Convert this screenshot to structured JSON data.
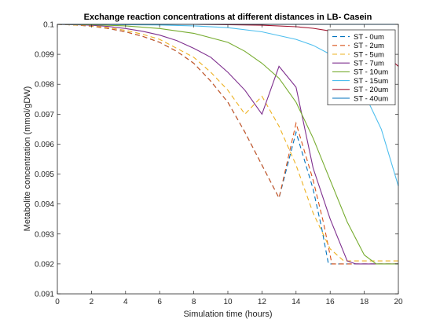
{
  "chart_data": {
    "type": "line",
    "title": "Exchange reaction concentrations at different distances in LB- Casein",
    "xlabel": "Simulation time (hours)",
    "ylabel": "Metabolite concentration (mmol/gDW)",
    "xlim": [
      0,
      20
    ],
    "ylim": [
      0.091,
      0.1
    ],
    "xticks": [
      "0",
      "2",
      "4",
      "6",
      "8",
      "10",
      "12",
      "14",
      "16",
      "18",
      "20"
    ],
    "yticks": [
      "0.091",
      "0.092",
      "0.093",
      "0.094",
      "0.095",
      "0.096",
      "0.097",
      "0.098",
      "0.099",
      "0.1"
    ],
    "grid": false,
    "legend_position": "top-right",
    "series": [
      {
        "name": "ST - 0um",
        "color": "#0072BD",
        "dash": "dashed",
        "x": [
          0,
          1,
          2,
          3,
          4,
          5,
          6,
          7,
          8,
          9,
          10,
          11,
          12,
          13,
          14,
          15,
          15.5,
          15.9,
          16.5,
          18,
          20
        ],
        "y": [
          0.1,
          0.09998,
          0.09994,
          0.09986,
          0.09975,
          0.0996,
          0.0994,
          0.0991,
          0.0987,
          0.0981,
          0.0974,
          0.0964,
          0.0953,
          0.0942,
          0.0964,
          0.0945,
          0.0932,
          0.092,
          0.092,
          0.092,
          0.092
        ]
      },
      {
        "name": "ST - 2um",
        "color": "#D95319",
        "dash": "dashed",
        "x": [
          0,
          1,
          2,
          3,
          4,
          5,
          6,
          7,
          8,
          9,
          10,
          11,
          12,
          13,
          14,
          15,
          15.6,
          16.1,
          16.5,
          18,
          20
        ],
        "y": [
          0.1,
          0.09998,
          0.09994,
          0.09986,
          0.09975,
          0.0996,
          0.0994,
          0.0991,
          0.0987,
          0.0981,
          0.0974,
          0.0964,
          0.0953,
          0.0942,
          0.0967,
          0.0948,
          0.0934,
          0.092,
          0.092,
          0.092,
          0.092
        ]
      },
      {
        "name": "ST - 5um",
        "color": "#EDB120",
        "dash": "dashed",
        "x": [
          0,
          1,
          2,
          3,
          4,
          5,
          6,
          7,
          8,
          9,
          10,
          11,
          12,
          13,
          14,
          15,
          16,
          16.8,
          17.5,
          18.5,
          20
        ],
        "y": [
          0.1,
          0.09998,
          0.09995,
          0.09989,
          0.0998,
          0.09967,
          0.0995,
          0.0992,
          0.0989,
          0.0984,
          0.0978,
          0.097,
          0.0976,
          0.0966,
          0.0953,
          0.0937,
          0.0925,
          0.0921,
          0.0921,
          0.0921,
          0.0921
        ]
      },
      {
        "name": "ST - 7um",
        "color": "#7E2F8E",
        "dash": "solid",
        "x": [
          0,
          1,
          2,
          3,
          4,
          5,
          6,
          7,
          8,
          9,
          10,
          11,
          12,
          13,
          14,
          15,
          16,
          17,
          17.5,
          18.5,
          20
        ],
        "y": [
          0.1,
          0.09999,
          0.09997,
          0.09993,
          0.09986,
          0.09977,
          0.09964,
          0.09946,
          0.0992,
          0.0989,
          0.0984,
          0.0978,
          0.097,
          0.0986,
          0.0979,
          0.0952,
          0.0935,
          0.0921,
          0.092,
          0.092,
          0.092
        ]
      },
      {
        "name": "ST - 10um",
        "color": "#77AC30",
        "dash": "solid",
        "x": [
          0,
          2,
          4,
          6,
          8,
          10,
          11,
          12,
          13,
          14,
          15,
          16,
          17,
          18,
          18.7,
          19.5,
          20
        ],
        "y": [
          0.1,
          0.09999,
          0.09995,
          0.09986,
          0.0997,
          0.0994,
          0.0991,
          0.0987,
          0.0982,
          0.0974,
          0.0962,
          0.0948,
          0.0934,
          0.0923,
          0.092,
          0.092,
          0.092
        ]
      },
      {
        "name": "ST - 15um",
        "color": "#4DBEEE",
        "dash": "solid",
        "x": [
          0,
          2,
          4,
          6,
          8,
          10,
          12,
          14,
          15,
          16,
          17,
          18,
          19,
          20
        ],
        "y": [
          0.1,
          0.1,
          0.09999,
          0.09998,
          0.09995,
          0.09989,
          0.09975,
          0.0995,
          0.0993,
          0.099,
          0.0985,
          0.0977,
          0.0965,
          0.0946
        ]
      },
      {
        "name": "ST - 20um",
        "color": "#A2142F",
        "dash": "solid",
        "x": [
          0,
          4,
          8,
          10,
          12,
          14,
          15,
          16,
          17,
          18,
          19,
          20
        ],
        "y": [
          0.1,
          0.1,
          0.1,
          0.09999,
          0.09997,
          0.09992,
          0.09987,
          0.09978,
          0.09965,
          0.09945,
          0.0991,
          0.0986
        ]
      },
      {
        "name": "ST - 40um",
        "color": "#0072BD",
        "dash": "solid",
        "x": [
          0,
          10,
          20
        ],
        "y": [
          0.1,
          0.1,
          0.1
        ]
      }
    ]
  }
}
